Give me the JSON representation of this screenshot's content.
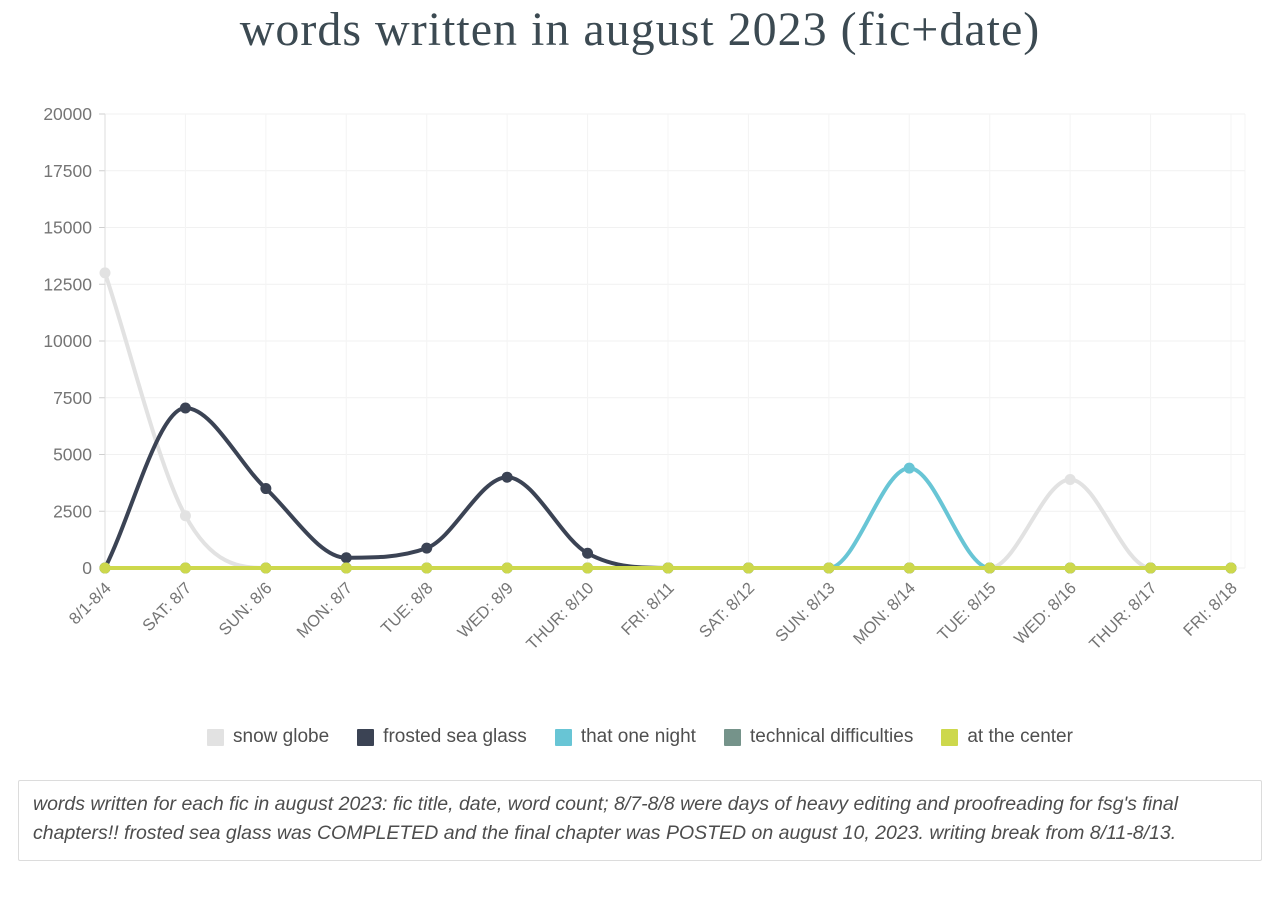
{
  "page": {
    "background": "#ffffff"
  },
  "title": {
    "text": "words written in august 2023 (fic+date)",
    "color": "#3c4a52"
  },
  "chart_data": {
    "type": "line",
    "title": "words written in august 2023 (fic+date)",
    "categories": [
      "8/1-8/4",
      "SAT: 8/7",
      "SUN: 8/6",
      "MON: 8/7",
      "TUE: 8/8",
      "WED: 8/9",
      "THUR: 8/10",
      "FRI: 8/11",
      "SAT: 8/12",
      "SUN: 8/13",
      "MON: 8/14",
      "TUE: 8/15",
      "WED: 8/16",
      "THUR: 8/17",
      "FRI: 8/18"
    ],
    "series": [
      {
        "name": "snow globe",
        "color": "#e2e2e2",
        "values": [
          13000,
          2300,
          0,
          0,
          0,
          0,
          0,
          0,
          0,
          0,
          0,
          0,
          3900,
          0,
          0
        ]
      },
      {
        "name": "frosted sea glass",
        "color": "#3b4354",
        "values": [
          0,
          7050,
          3500,
          450,
          875,
          4000,
          650,
          0,
          0,
          0,
          0,
          0,
          0,
          0,
          0
        ]
      },
      {
        "name": "that one night",
        "color": "#68c5d5",
        "values": [
          0,
          0,
          0,
          0,
          0,
          0,
          0,
          0,
          0,
          0,
          4400,
          0,
          0,
          0,
          0
        ]
      },
      {
        "name": "technical difficulties",
        "color": "#75938a",
        "values": [
          0,
          0,
          0,
          0,
          0,
          0,
          0,
          0,
          0,
          0,
          0,
          0,
          0,
          0,
          0
        ]
      },
      {
        "name": "at the center",
        "color": "#cdd84c",
        "values": [
          0,
          0,
          0,
          0,
          0,
          0,
          0,
          0,
          0,
          0,
          0,
          0,
          0,
          0,
          0
        ]
      }
    ],
    "xlabel": "",
    "ylabel": "",
    "ylim": [
      0,
      20000
    ],
    "y_ticks": [
      0,
      2500,
      5000,
      7500,
      10000,
      12500,
      15000,
      17500,
      20000
    ],
    "grid": true,
    "line_style": "smooth-monotone",
    "point_radius": 5.5,
    "legend_position": "bottom",
    "axis_text_color": "#757575",
    "grid_color": "#f1f1f1",
    "axis_line_color": "#dedede"
  },
  "caption": {
    "text": "words written for each fic in august 2023: fic title, date, word count; 8/7-8/8 were days of heavy editing and proofreading for fsg's final chapters!! frosted sea glass was COMPLETED and the final chapter was POSTED on august 10, 2023. writing break from 8/11-8/13.",
    "border_color": "#dcdcdc"
  }
}
